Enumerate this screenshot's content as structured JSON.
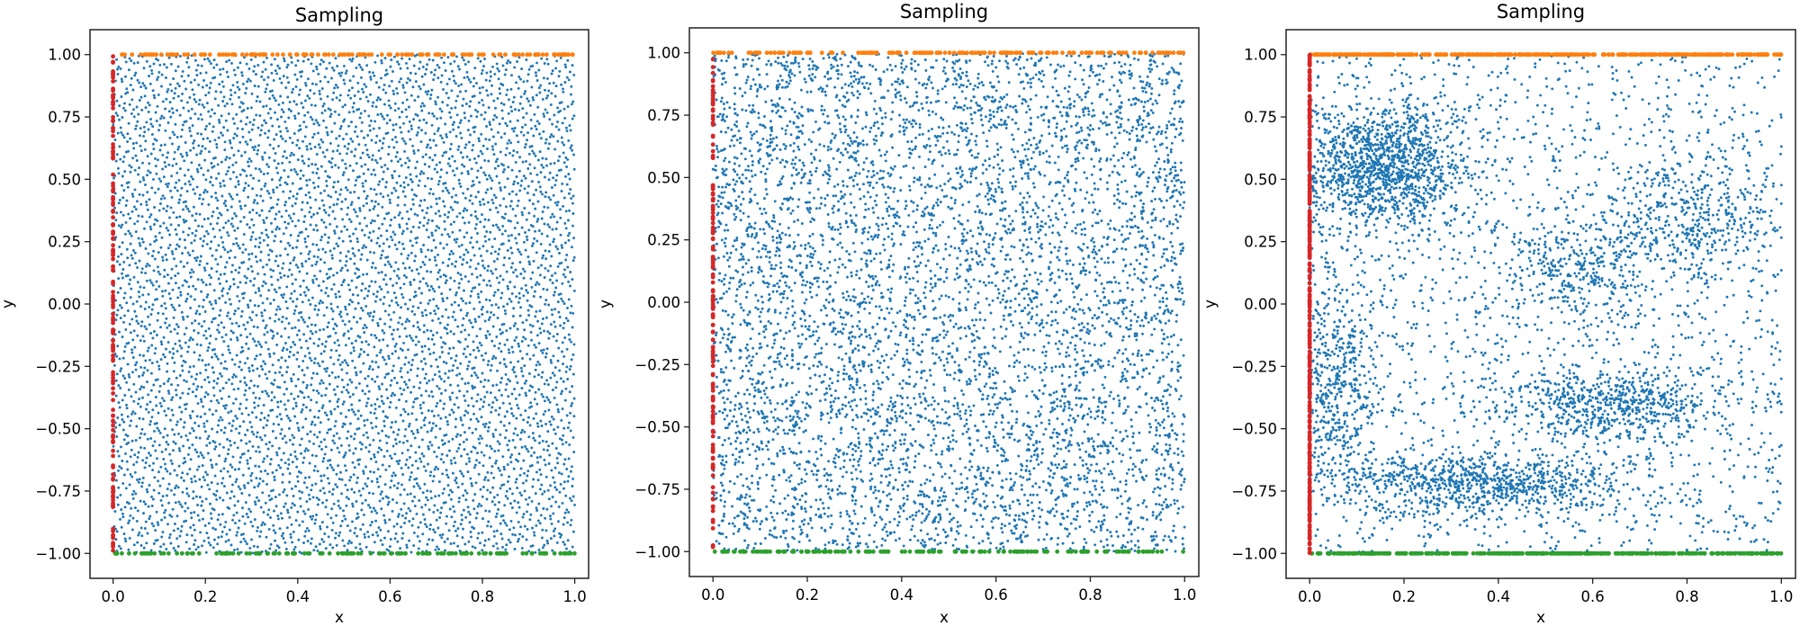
{
  "figure": {
    "description_colors": {
      "interior": "#1f77b4",
      "top_boundary": "#ff7f0e",
      "bottom_boundary": "#2ca02c",
      "left_boundary": "#d62728"
    }
  },
  "chart_data": [
    {
      "type": "scatter",
      "title": "Sampling",
      "xlabel": "x",
      "ylabel": "y",
      "xlim": [
        -0.05,
        1.03
      ],
      "ylim": [
        -1.1,
        1.1
      ],
      "xticks": [
        0.0,
        0.2,
        0.4,
        0.6,
        0.8,
        1.0
      ],
      "xtick_labels": [
        "0.0",
        "0.2",
        "0.4",
        "0.6",
        "0.8",
        "1.0"
      ],
      "yticks": [
        1.0,
        0.75,
        0.5,
        0.25,
        0.0,
        -0.25,
        -0.5,
        -0.75,
        -1.0
      ],
      "ytick_labels": [
        "1.00",
        "0.75",
        "0.50",
        "0.25",
        "0.00",
        "−0.25",
        "−0.50",
        "−0.75",
        "−1.00"
      ],
      "grid": false,
      "distribution": "quasi-random",
      "series": [
        {
          "role": "interior",
          "color": "#1f77b4",
          "region": {
            "x": [
              0.0,
              1.0
            ],
            "y": [
              -1.0,
              1.0
            ]
          },
          "count": 6000
        },
        {
          "role": "top",
          "color": "#ff7f0e",
          "x_range": [
            0.0,
            1.0
          ],
          "y": 1.0,
          "count": 150
        },
        {
          "role": "bottom",
          "color": "#2ca02c",
          "x_range": [
            0.0,
            1.0
          ],
          "y": -1.0,
          "count": 150
        },
        {
          "role": "left",
          "color": "#d62728",
          "x": 0.0,
          "y_range": [
            -1.0,
            1.0
          ],
          "count": 150
        }
      ]
    },
    {
      "type": "scatter",
      "title": "Sampling",
      "xlabel": "x",
      "ylabel": "y",
      "xlim": [
        -0.05,
        1.03
      ],
      "ylim": [
        -1.1,
        1.1
      ],
      "xticks": [
        0.0,
        0.2,
        0.4,
        0.6,
        0.8,
        1.0
      ],
      "xtick_labels": [
        "0.0",
        "0.2",
        "0.4",
        "0.6",
        "0.8",
        "1.0"
      ],
      "yticks": [
        1.0,
        0.75,
        0.5,
        0.25,
        0.0,
        -0.25,
        -0.5,
        -0.75,
        -1.0
      ],
      "ytick_labels": [
        "1.00",
        "0.75",
        "0.50",
        "0.25",
        "0.00",
        "−0.25",
        "−0.50",
        "−0.75",
        "−1.00"
      ],
      "grid": false,
      "distribution": "uniform-random",
      "series": [
        {
          "role": "interior",
          "color": "#1f77b4",
          "region": {
            "x": [
              0.0,
              1.0
            ],
            "y": [
              -1.0,
              1.0
            ]
          },
          "count": 6000
        },
        {
          "role": "top",
          "color": "#ff7f0e",
          "x_range": [
            0.0,
            1.0
          ],
          "y": 1.0,
          "count": 150
        },
        {
          "role": "bottom",
          "color": "#2ca02c",
          "x_range": [
            0.0,
            1.0
          ],
          "y": -1.0,
          "count": 150
        },
        {
          "role": "left",
          "color": "#d62728",
          "x": 0.0,
          "y_range": [
            -1.0,
            1.0
          ],
          "count": 150
        }
      ]
    },
    {
      "type": "scatter",
      "title": "Sampling",
      "xlabel": "x",
      "ylabel": "y",
      "xlim": [
        -0.05,
        1.03
      ],
      "ylim": [
        -1.1,
        1.1
      ],
      "xticks": [
        0.0,
        0.2,
        0.4,
        0.6,
        0.8,
        1.0
      ],
      "xtick_labels": [
        "0.0",
        "0.2",
        "0.4",
        "0.6",
        "0.8",
        "1.0"
      ],
      "yticks": [
        1.0,
        0.75,
        0.5,
        0.25,
        0.0,
        -0.25,
        -0.5,
        -0.75,
        -1.0
      ],
      "ytick_labels": [
        "1.00",
        "0.75",
        "0.50",
        "0.25",
        "0.00",
        "−0.25",
        "−0.50",
        "−0.75",
        "−1.00"
      ],
      "grid": false,
      "distribution": "adaptive-clustered",
      "clusters": [
        {
          "cx": 0.15,
          "cy": 0.55,
          "sx": 0.09,
          "sy": 0.12,
          "weight": 0.22
        },
        {
          "cx": 0.35,
          "cy": -0.72,
          "sx": 0.16,
          "sy": 0.06,
          "weight": 0.14
        },
        {
          "cx": 0.65,
          "cy": -0.4,
          "sx": 0.12,
          "sy": 0.07,
          "weight": 0.1
        },
        {
          "cx": 0.05,
          "cy": -0.3,
          "sx": 0.05,
          "sy": 0.2,
          "weight": 0.08
        },
        {
          "cx": 0.8,
          "cy": 0.35,
          "sx": 0.1,
          "sy": 0.12,
          "weight": 0.07
        },
        {
          "cx": 0.55,
          "cy": 0.15,
          "sx": 0.08,
          "sy": 0.1,
          "weight": 0.05
        }
      ],
      "series": [
        {
          "role": "interior",
          "color": "#1f77b4",
          "region": {
            "x": [
              0.0,
              1.0
            ],
            "y": [
              -1.0,
              1.0
            ]
          },
          "count": 6000
        },
        {
          "role": "top",
          "color": "#ff7f0e",
          "x_range": [
            0.0,
            1.0
          ],
          "y": 1.0,
          "count": 400
        },
        {
          "role": "bottom",
          "color": "#2ca02c",
          "x_range": [
            0.0,
            1.0
          ],
          "y": -1.0,
          "count": 400
        },
        {
          "role": "left",
          "color": "#d62728",
          "x": 0.0,
          "y_range": [
            -1.0,
            1.0
          ],
          "count": 400
        }
      ]
    }
  ]
}
